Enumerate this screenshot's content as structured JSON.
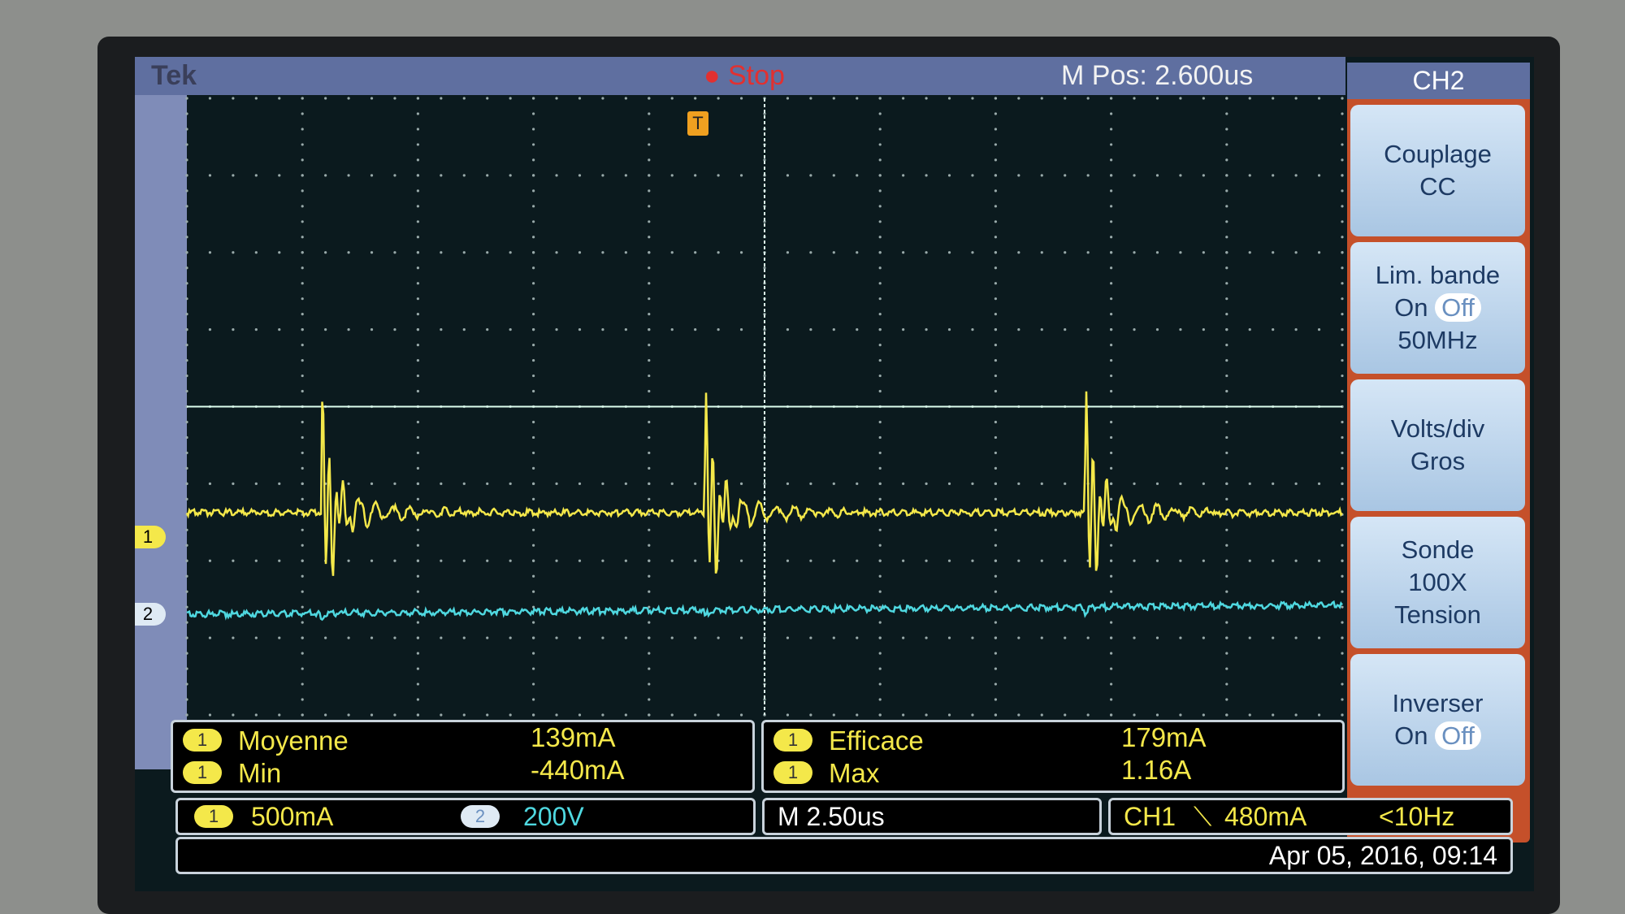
{
  "header": {
    "brand": "Tek",
    "status": "Stop",
    "position": "M Pos: 2.600us"
  },
  "markers": {
    "ch1": "1",
    "ch2": "2",
    "trigger": "T"
  },
  "side_menu": {
    "title": "CH2",
    "buttons": [
      {
        "rows": [
          "Couplage",
          "CC"
        ]
      },
      {
        "rows": [
          "Lim. bande",
          {
            "on": "On",
            "off": "Off"
          },
          "50MHz"
        ]
      },
      {
        "rows": [
          "Volts/div",
          "Gros"
        ]
      },
      {
        "rows": [
          "Sonde",
          "100X",
          "Tension"
        ]
      },
      {
        "rows": [
          "Inverser",
          {
            "on": "On",
            "off": "Off"
          }
        ]
      }
    ]
  },
  "measurements": [
    {
      "channel": "1",
      "name": "Moyenne",
      "value": "139mA"
    },
    {
      "channel": "1",
      "name": "Min",
      "value": "-440mA"
    },
    {
      "channel": "1",
      "name": "Efficace",
      "value": "179mA"
    },
    {
      "channel": "1",
      "name": "Max",
      "value": "1.16A"
    }
  ],
  "status_bar": {
    "ch1": {
      "channel": "1",
      "scale": "500mA"
    },
    "ch2": {
      "channel": "2",
      "scale": "200V"
    },
    "timebase": "M 2.50us",
    "trigger": {
      "source": "CH1",
      "level": "480mA",
      "frequency": "<10Hz"
    },
    "date": "Apr 05, 2016, 09:14"
  }
}
